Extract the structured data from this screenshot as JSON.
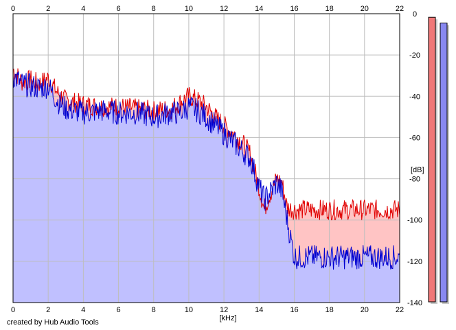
{
  "credit": "created by Hub Audio Tools",
  "colors": {
    "red_line": "#e00000",
    "red_fill": "#ffc4c4",
    "blue_line": "#0000d0",
    "blue_fill": "#c0c0ff",
    "grid": "#bdbdbd",
    "meter_red": "#f07878",
    "meter_blue": "#8888f0"
  },
  "chart_data": {
    "type": "area",
    "title": "",
    "xlabel": "[kHz]",
    "ylabel": "[dB]",
    "xlim": [
      0,
      22
    ],
    "ylim": [
      -140,
      0
    ],
    "x_ticks": [
      "0",
      "2",
      "4",
      "6",
      "8",
      "10",
      "12",
      "14",
      "16",
      "18",
      "20",
      "22"
    ],
    "y_ticks": [
      "0",
      "-20",
      "-40",
      "-60",
      "-80",
      "-100",
      "-120",
      "-140"
    ],
    "grid": true,
    "x_axis_labels": "top-and-bottom",
    "y_axis_labels": "right",
    "series": [
      {
        "color": "red",
        "x": [
          0,
          0.5,
          1,
          1.5,
          2,
          2.5,
          3,
          4,
          5,
          6,
          7,
          8,
          9,
          9.5,
          10,
          10.5,
          11,
          11.5,
          12,
          12.5,
          13,
          13.5,
          14,
          14.3,
          14.5,
          15,
          15.3,
          15.6,
          16,
          17,
          18,
          19,
          20,
          21,
          22
        ],
        "y": [
          -27,
          -33,
          -32,
          -34,
          -31,
          -38,
          -42,
          -44,
          -45,
          -45,
          -46,
          -47,
          -46,
          -43,
          -40,
          -42,
          -45,
          -50,
          -54,
          -58,
          -62,
          -68,
          -84,
          -95,
          -90,
          -80,
          -82,
          -94,
          -95,
          -95,
          -95,
          -95,
          -95,
          -95,
          -95
        ]
      },
      {
        "color": "blue",
        "x": [
          0,
          0.5,
          1,
          1.5,
          2,
          2.5,
          3,
          4,
          5,
          6,
          7,
          8,
          9,
          9.5,
          10,
          10.5,
          11,
          11.5,
          12,
          12.5,
          13,
          13.5,
          14,
          14.3,
          14.5,
          15,
          15.3,
          15.6,
          16,
          17,
          18,
          19,
          20,
          21,
          22
        ],
        "y": [
          -30,
          -34,
          -35,
          -36,
          -35,
          -42,
          -46,
          -48,
          -47,
          -48,
          -48,
          -50,
          -48,
          -48,
          -45,
          -47,
          -50,
          -54,
          -58,
          -62,
          -66,
          -70,
          -84,
          -90,
          -88,
          -82,
          -86,
          -100,
          -118,
          -118,
          -118,
          -118,
          -118,
          -118,
          -118
        ]
      }
    ],
    "meters": [
      {
        "color": "red",
        "level": 0.99
      },
      {
        "color": "blue",
        "level": 0.97
      }
    ]
  }
}
